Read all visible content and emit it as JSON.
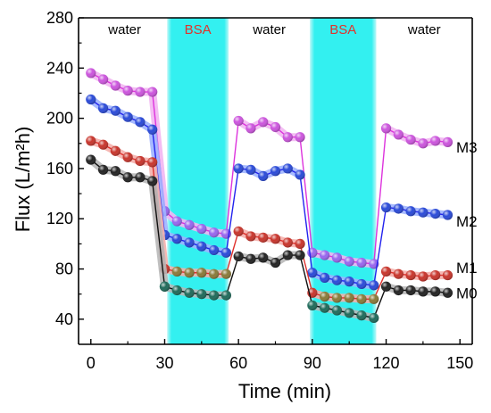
{
  "chart_data": {
    "type": "line",
    "xlabel": "Time (min)",
    "ylabel": "Flux (L/m²h)",
    "xlim": [
      -5,
      155
    ],
    "ylim": [
      20,
      280
    ],
    "xticks": [
      0,
      30,
      60,
      90,
      120,
      150
    ],
    "yticks": [
      40,
      80,
      120,
      160,
      200,
      240,
      280
    ],
    "grid": false,
    "phases": [
      {
        "label": "water",
        "x_start": -5,
        "x_end": 31,
        "shaded": false,
        "label_color": "#000000"
      },
      {
        "label": "BSA",
        "x_start": 31,
        "x_end": 56,
        "shaded": true,
        "label_color": "#e0332c"
      },
      {
        "label": "water",
        "x_start": 56,
        "x_end": 89,
        "shaded": false,
        "label_color": "#000000"
      },
      {
        "label": "BSA",
        "x_start": 89,
        "x_end": 116,
        "shaded": true,
        "label_color": "#e0332c"
      },
      {
        "label": "water",
        "x_start": 116,
        "x_end": 155,
        "shaded": false,
        "label_color": "#000000"
      }
    ],
    "band_color": "#33f0f0",
    "series": [
      {
        "name": "M3",
        "color": "#dd33dd",
        "glow": "#f2b6f2",
        "segments": [
          {
            "x": [
              0,
              5,
              10,
              15,
              20,
              25,
              30
            ],
            "y": [
              236,
              231,
              226,
              222,
              221,
              221,
              126
            ],
            "colors": [
              "#cc55dd",
              "#cc55dd",
              "#cc55dd",
              "#cc55dd",
              "#cc55dd",
              "#cc55dd",
              "#9966ee"
            ]
          },
          {
            "x": [
              30,
              35,
              40,
              45,
              50,
              55
            ],
            "y": [
              126,
              118,
              115,
              112,
              109,
              108
            ],
            "colors": [
              "#9966ee",
              "#9966ee",
              "#9966ee",
              "#9966ee",
              "#9966ee",
              "#9966ee"
            ]
          },
          {
            "x": [
              60,
              65,
              70,
              75,
              80,
              85
            ],
            "y": [
              198,
              192,
              197,
              193,
              185,
              185
            ],
            "colors": [
              "#cc55dd",
              "#cc55dd",
              "#cc55dd",
              "#cc55dd",
              "#cc55dd",
              "#cc55dd"
            ]
          },
          {
            "x": [
              90,
              95,
              100,
              105,
              110,
              115
            ],
            "y": [
              93,
              91,
              89,
              86,
              85,
              84
            ],
            "colors": [
              "#9966ee",
              "#9966ee",
              "#9966ee",
              "#9966ee",
              "#9966ee",
              "#9966ee"
            ]
          },
          {
            "x": [
              120,
              125,
              130,
              135,
              140,
              145
            ],
            "y": [
              192,
              187,
              183,
              180,
              182,
              181
            ],
            "colors": [
              "#cc55dd",
              "#cc55dd",
              "#cc55dd",
              "#cc55dd",
              "#cc55dd",
              "#cc55dd"
            ]
          }
        ],
        "connectors": [
          [
            [
              55,
              108
            ],
            [
              60,
              198
            ]
          ],
          [
            [
              85,
              185
            ],
            [
              90,
              93
            ]
          ],
          [
            [
              115,
              84
            ],
            [
              120,
              192
            ]
          ]
        ],
        "label_at": [
          147,
          177
        ]
      },
      {
        "name": "M2",
        "color": "#2222ee",
        "glow": "#9fb4ff",
        "segments": [
          {
            "x": [
              0,
              5,
              10,
              15,
              20,
              25,
              30
            ],
            "y": [
              215,
              208,
              206,
              201,
              197,
              191,
              107
            ],
            "colors": [
              "#2a4ad8",
              "#2a4ad8",
              "#2a4ad8",
              "#2a4ad8",
              "#2a4ad8",
              "#2a4ad8",
              "#2a4ad8"
            ]
          },
          {
            "x": [
              30,
              35,
              40,
              45,
              50,
              55
            ],
            "y": [
              107,
              104,
              101,
              98,
              95,
              93
            ],
            "colors": [
              "#2a4ad8",
              "#2a4ad8",
              "#2a4ad8",
              "#2a4ad8",
              "#2a4ad8",
              "#2a4ad8"
            ]
          },
          {
            "x": [
              60,
              65,
              70,
              75,
              80,
              85
            ],
            "y": [
              160,
              159,
              154,
              158,
              160,
              155
            ],
            "colors": [
              "#2a4ad8",
              "#2a4ad8",
              "#2a4ad8",
              "#2a4ad8",
              "#2a4ad8",
              "#2a4ad8"
            ]
          },
          {
            "x": [
              90,
              95,
              100,
              105,
              110,
              115
            ],
            "y": [
              77,
              73,
              71,
              70,
              68,
              67
            ],
            "colors": [
              "#2a4ad8",
              "#2a4ad8",
              "#2a4ad8",
              "#2a4ad8",
              "#2a4ad8",
              "#2a4ad8"
            ]
          },
          {
            "x": [
              120,
              125,
              130,
              135,
              140,
              145
            ],
            "y": [
              129,
              128,
              126,
              125,
              124,
              123
            ],
            "colors": [
              "#2a4ad8",
              "#2a4ad8",
              "#2a4ad8",
              "#2a4ad8",
              "#2a4ad8",
              "#2a4ad8"
            ]
          }
        ],
        "connectors": [
          [
            [
              55,
              93
            ],
            [
              60,
              160
            ]
          ],
          [
            [
              85,
              155
            ],
            [
              90,
              77
            ]
          ],
          [
            [
              115,
              67
            ],
            [
              120,
              129
            ]
          ]
        ],
        "label_at": [
          147,
          118
        ]
      },
      {
        "name": "M1",
        "color": "#e0302c",
        "glow": "#f5b0ac",
        "segments": [
          {
            "x": [
              0,
              5,
              10,
              15,
              20,
              25,
              30
            ],
            "y": [
              182,
              179,
              174,
              169,
              166,
              165,
              80
            ],
            "colors": [
              "#c8352c",
              "#c8352c",
              "#c8352c",
              "#c8352c",
              "#c8352c",
              "#c8352c",
              "#c8352c"
            ]
          },
          {
            "x": [
              30,
              35,
              40,
              45,
              50,
              55
            ],
            "y": [
              80,
              78,
              77,
              77,
              76,
              76
            ],
            "colors": [
              "#c8352c",
              "#8a7a3a",
              "#8a7a3a",
              "#8a7a3a",
              "#8a7a3a",
              "#8a7a3a"
            ]
          },
          {
            "x": [
              60,
              65,
              70,
              75,
              80,
              85
            ],
            "y": [
              110,
              106,
              105,
              104,
              101,
              100
            ],
            "colors": [
              "#c8352c",
              "#c8352c",
              "#c8352c",
              "#c8352c",
              "#c8352c",
              "#c8352c"
            ]
          },
          {
            "x": [
              90,
              95,
              100,
              105,
              110,
              115
            ],
            "y": [
              61,
              58,
              57,
              57,
              56,
              56
            ],
            "colors": [
              "#c8352c",
              "#8a7a3a",
              "#8a7a3a",
              "#8a7a3a",
              "#8a7a3a",
              "#8a7a3a"
            ]
          },
          {
            "x": [
              120,
              125,
              130,
              135,
              140,
              145
            ],
            "y": [
              78,
              76,
              75,
              74,
              75,
              75
            ],
            "colors": [
              "#c8352c",
              "#c8352c",
              "#c8352c",
              "#c8352c",
              "#c8352c",
              "#c8352c"
            ]
          }
        ],
        "connectors": [
          [
            [
              55,
              76
            ],
            [
              60,
              110
            ]
          ],
          [
            [
              85,
              100
            ],
            [
              90,
              61
            ]
          ],
          [
            [
              115,
              56
            ],
            [
              120,
              78
            ]
          ]
        ],
        "label_at": [
          147,
          81
        ]
      },
      {
        "name": "M0",
        "color": "#111111",
        "glow": "#b8b8b8",
        "segments": [
          {
            "x": [
              0,
              5,
              10,
              15,
              20,
              25,
              30
            ],
            "y": [
              167,
              159,
              158,
              153,
              153,
              150,
              66
            ],
            "colors": [
              "#222222",
              "#222222",
              "#222222",
              "#222222",
              "#222222",
              "#222222",
              "#1f6a5a"
            ]
          },
          {
            "x": [
              30,
              35,
              40,
              45,
              50,
              55
            ],
            "y": [
              66,
              63,
              61,
              60,
              59,
              59
            ],
            "colors": [
              "#1f6a5a",
              "#1f6a5a",
              "#1f6a5a",
              "#1f6a5a",
              "#1f6a5a",
              "#1f6a5a"
            ]
          },
          {
            "x": [
              60,
              65,
              70,
              75,
              80,
              85
            ],
            "y": [
              90,
              88,
              89,
              85,
              91,
              91
            ],
            "colors": [
              "#222222",
              "#222222",
              "#222222",
              "#222222",
              "#222222",
              "#222222"
            ]
          },
          {
            "x": [
              90,
              95,
              100,
              105,
              110,
              115
            ],
            "y": [
              51,
              49,
              47,
              45,
              43,
              41
            ],
            "colors": [
              "#1f6a5a",
              "#1f6a5a",
              "#1f6a5a",
              "#1f6a5a",
              "#1f6a5a",
              "#1f6a5a"
            ]
          },
          {
            "x": [
              120,
              125,
              130,
              135,
              140,
              145
            ],
            "y": [
              66,
              63,
              63,
              62,
              62,
              61
            ],
            "colors": [
              "#222222",
              "#222222",
              "#222222",
              "#222222",
              "#222222",
              "#222222"
            ]
          }
        ],
        "connectors": [
          [
            [
              55,
              59
            ],
            [
              60,
              90
            ]
          ],
          [
            [
              85,
              91
            ],
            [
              90,
              51
            ]
          ],
          [
            [
              115,
              41
            ],
            [
              120,
              66
            ]
          ]
        ],
        "label_at": [
          147,
          61
        ]
      }
    ]
  }
}
